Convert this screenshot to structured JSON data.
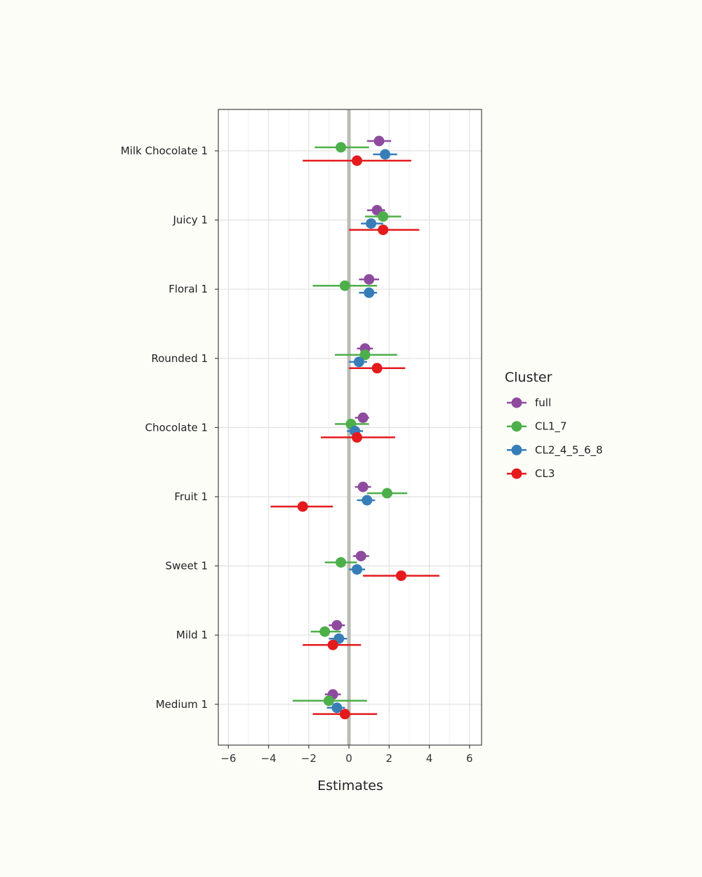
{
  "chart_data": {
    "type": "scatter",
    "subtype": "forest-plot",
    "xlabel": "Estimates",
    "ylabel": "",
    "xlim": [
      -6.5,
      6.6
    ],
    "xticks": [
      -6,
      -4,
      -2,
      0,
      2,
      4,
      6
    ],
    "xtick_labels": [
      "−6",
      "−4",
      "−2",
      "0",
      "2",
      "4",
      "6"
    ],
    "reference_line": 0,
    "grid": true,
    "legend": {
      "title": "Cluster",
      "position": "right"
    },
    "categories": [
      "Milk Chocolate 1",
      "Juicy 1",
      "Floral 1",
      "Rounded 1",
      "Chocolate 1",
      "Fruit 1",
      "Sweet 1",
      "Mild 1",
      "Medium 1"
    ],
    "series": [
      {
        "name": "full",
        "color": "#8e4b9e",
        "points": [
          {
            "category": "Milk Chocolate 1",
            "estimate": 1.5,
            "low": 0.9,
            "high": 2.1
          },
          {
            "category": "Juicy 1",
            "estimate": 1.4,
            "low": 0.9,
            "high": 1.8
          },
          {
            "category": "Floral 1",
            "estimate": 1.0,
            "low": 0.5,
            "high": 1.5
          },
          {
            "category": "Rounded 1",
            "estimate": 0.8,
            "low": 0.4,
            "high": 1.2
          },
          {
            "category": "Chocolate 1",
            "estimate": 0.7,
            "low": 0.3,
            "high": 1.0
          },
          {
            "category": "Fruit 1",
            "estimate": 0.7,
            "low": 0.3,
            "high": 1.1
          },
          {
            "category": "Sweet 1",
            "estimate": 0.6,
            "low": 0.2,
            "high": 1.0
          },
          {
            "category": "Mild 1",
            "estimate": -0.6,
            "low": -1.0,
            "high": -0.2
          },
          {
            "category": "Medium 1",
            "estimate": -0.8,
            "low": -1.2,
            "high": -0.4
          }
        ]
      },
      {
        "name": "CL1_7",
        "color": "#4daf4a",
        "points": [
          {
            "category": "Milk Chocolate 1",
            "estimate": -0.4,
            "low": -1.7,
            "high": 1.0
          },
          {
            "category": "Juicy 1",
            "estimate": 1.7,
            "low": 0.8,
            "high": 2.6
          },
          {
            "category": "Floral 1",
            "estimate": -0.2,
            "low": -1.8,
            "high": 1.4
          },
          {
            "category": "Rounded 1",
            "estimate": 0.8,
            "low": -0.7,
            "high": 2.4
          },
          {
            "category": "Chocolate 1",
            "estimate": 0.1,
            "low": -0.7,
            "high": 1.0
          },
          {
            "category": "Fruit 1",
            "estimate": 1.9,
            "low": 0.9,
            "high": 2.9
          },
          {
            "category": "Sweet 1",
            "estimate": -0.4,
            "low": -1.2,
            "high": 0.4
          },
          {
            "category": "Mild 1",
            "estimate": -1.2,
            "low": -1.9,
            "high": -0.4
          },
          {
            "category": "Medium 1",
            "estimate": -1.0,
            "low": -2.8,
            "high": 0.9
          }
        ]
      },
      {
        "name": "CL2_4_5_6_8",
        "color": "#377eb8",
        "points": [
          {
            "category": "Milk Chocolate 1",
            "estimate": 1.8,
            "low": 1.2,
            "high": 2.4
          },
          {
            "category": "Juicy 1",
            "estimate": 1.1,
            "low": 0.6,
            "high": 1.7
          },
          {
            "category": "Floral 1",
            "estimate": 1.0,
            "low": 0.5,
            "high": 1.4
          },
          {
            "category": "Rounded 1",
            "estimate": 0.5,
            "low": 0.0,
            "high": 0.9
          },
          {
            "category": "Chocolate 1",
            "estimate": 0.3,
            "low": -0.1,
            "high": 0.7
          },
          {
            "category": "Fruit 1",
            "estimate": 0.9,
            "low": 0.4,
            "high": 1.3
          },
          {
            "category": "Sweet 1",
            "estimate": 0.4,
            "low": 0.0,
            "high": 0.8
          },
          {
            "category": "Mild 1",
            "estimate": -0.5,
            "low": -1.0,
            "high": -0.1
          },
          {
            "category": "Medium 1",
            "estimate": -0.6,
            "low": -1.1,
            "high": -0.2
          }
        ]
      },
      {
        "name": "CL3",
        "color": "#e41a1c",
        "points": [
          {
            "category": "Milk Chocolate 1",
            "estimate": 0.4,
            "low": -2.3,
            "high": 3.1
          },
          {
            "category": "Juicy 1",
            "estimate": 1.7,
            "low": 0.0,
            "high": 3.5
          },
          {
            "category": "Rounded 1",
            "estimate": 1.4,
            "low": 0.0,
            "high": 2.8
          },
          {
            "category": "Chocolate 1",
            "estimate": 0.4,
            "low": -1.4,
            "high": 2.3
          },
          {
            "category": "Fruit 1",
            "estimate": -2.3,
            "low": -3.9,
            "high": -0.8
          },
          {
            "category": "Sweet 1",
            "estimate": 2.6,
            "low": 0.7,
            "high": 4.5
          },
          {
            "category": "Mild 1",
            "estimate": -0.8,
            "low": -2.3,
            "high": 0.6
          },
          {
            "category": "Medium 1",
            "estimate": -0.2,
            "low": -1.8,
            "high": 1.4
          }
        ]
      }
    ]
  }
}
